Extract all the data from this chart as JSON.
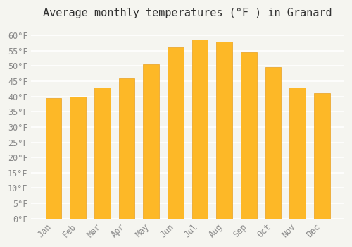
{
  "title": "Average monthly temperatures (°F ) in Granard",
  "months": [
    "Jan",
    "Feb",
    "Mar",
    "Apr",
    "May",
    "Jun",
    "Jul",
    "Aug",
    "Sep",
    "Oct",
    "Nov",
    "Dec"
  ],
  "values": [
    39.5,
    40.0,
    43.0,
    46.0,
    50.5,
    56.0,
    58.5,
    58.0,
    54.5,
    49.5,
    43.0,
    41.0
  ],
  "bar_color": "#FDB827",
  "bar_edge_color": "#E8A020",
  "background_color": "#F5F5F0",
  "grid_color": "#FFFFFF",
  "ylim": [
    0,
    63
  ],
  "yticks": [
    0,
    5,
    10,
    15,
    20,
    25,
    30,
    35,
    40,
    45,
    50,
    55,
    60
  ],
  "title_fontsize": 11,
  "tick_fontsize": 8.5
}
